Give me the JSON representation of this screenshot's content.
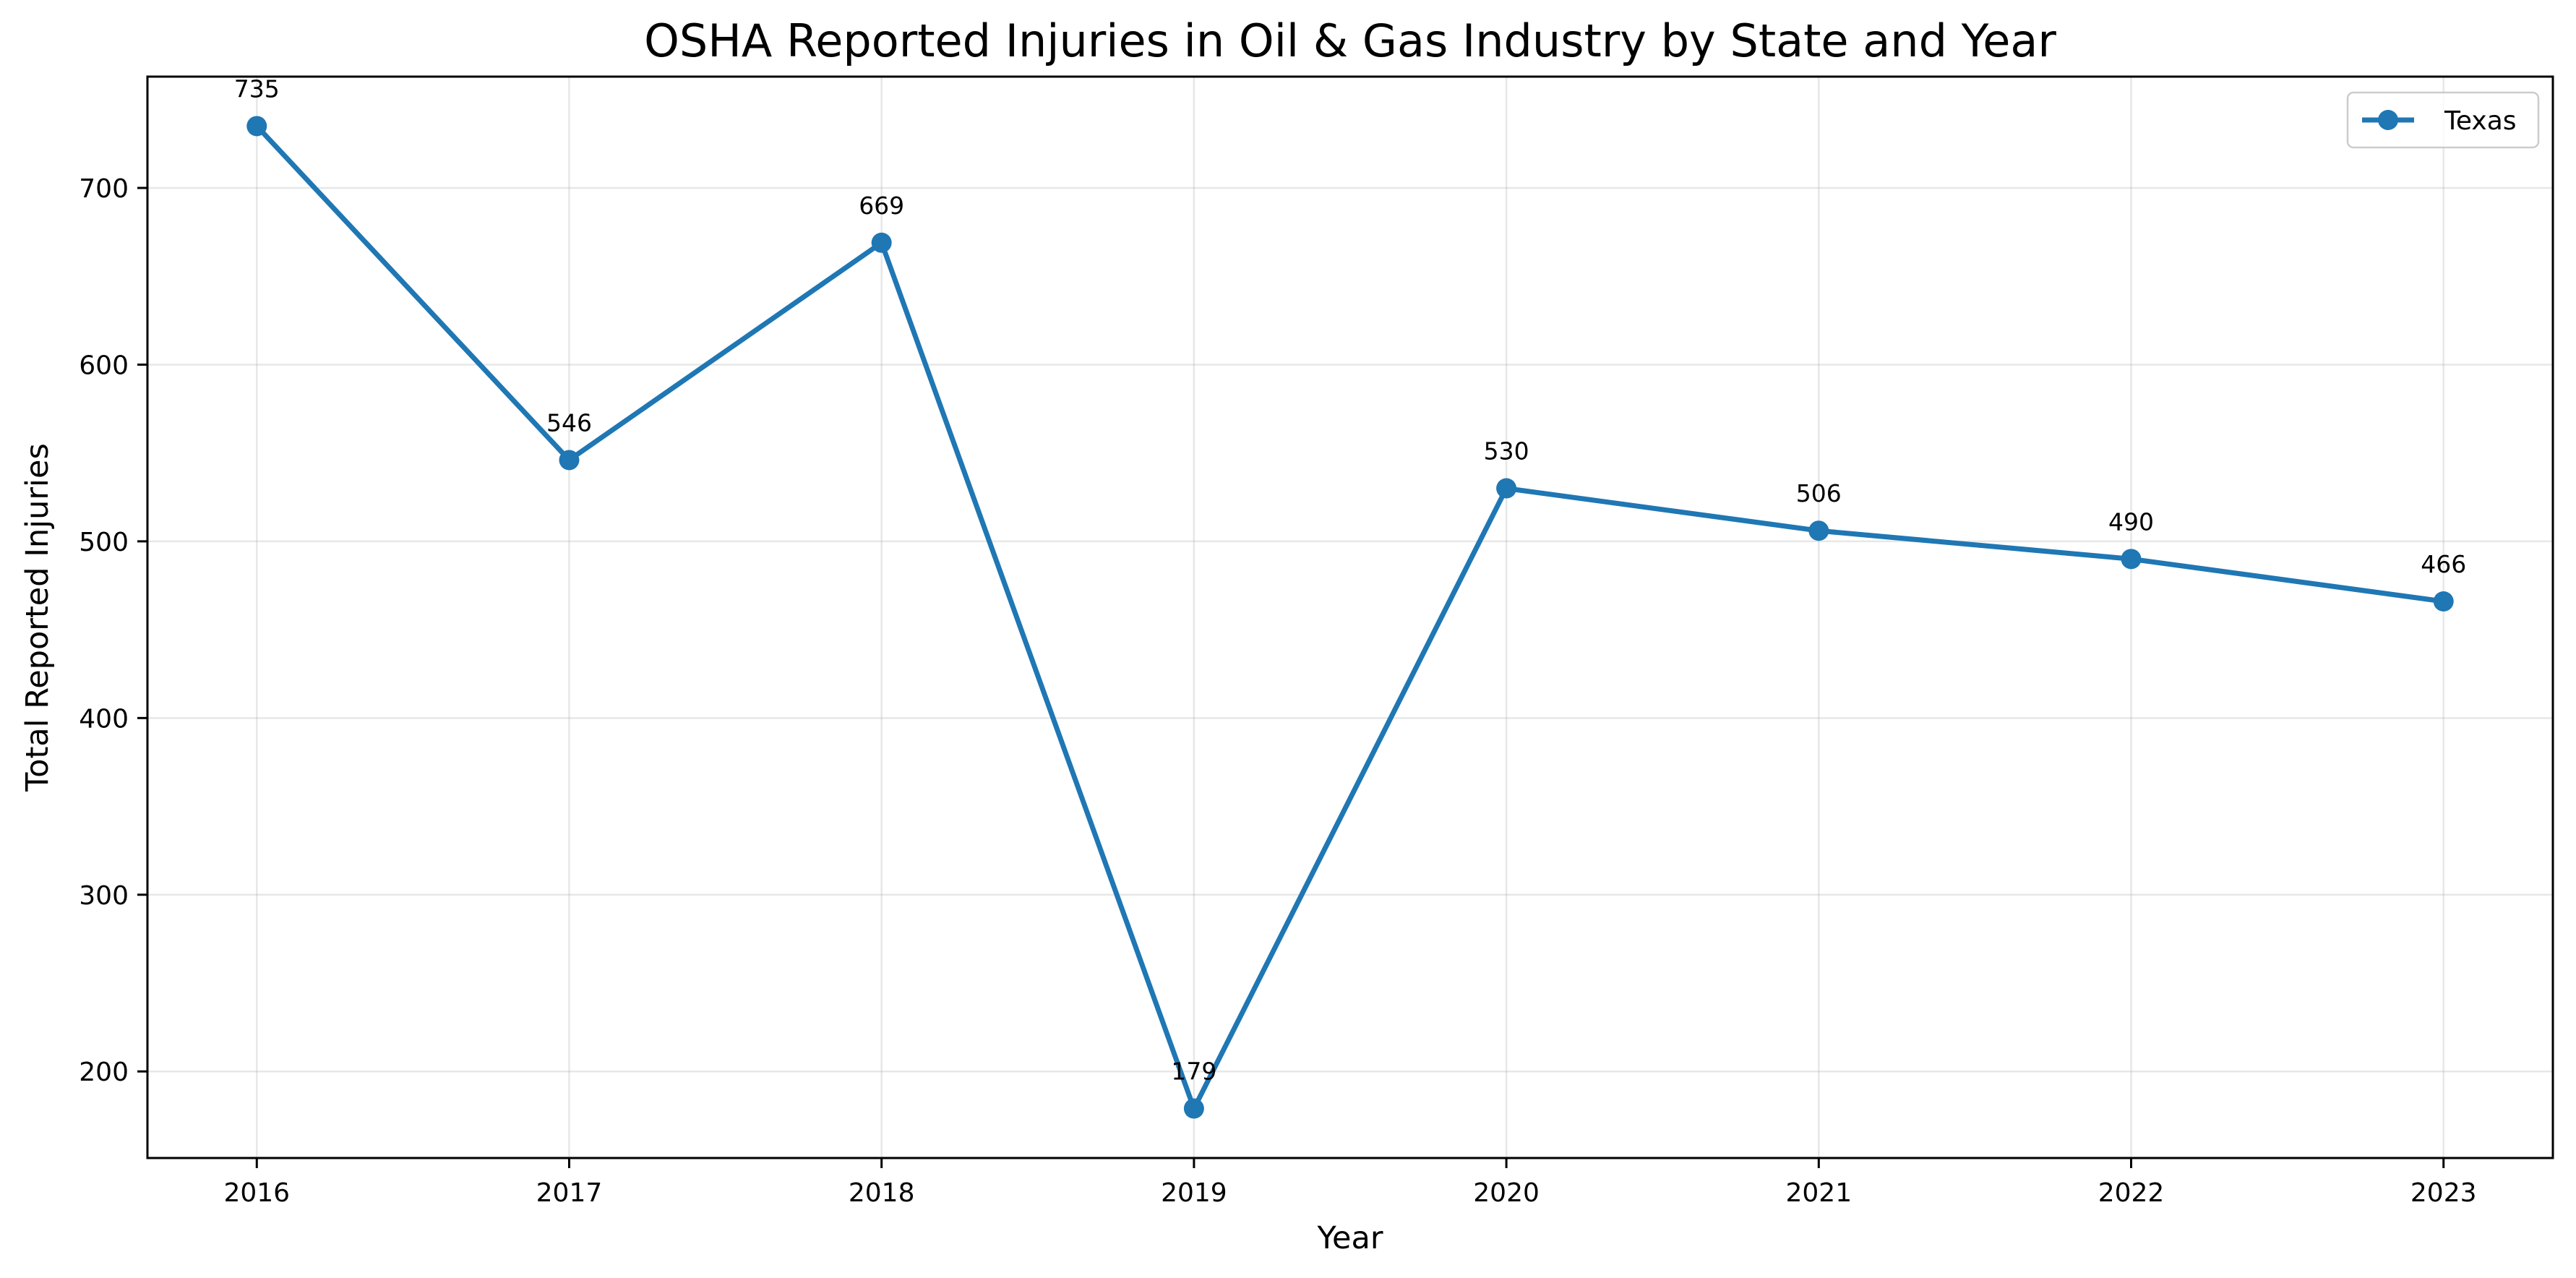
{
  "chart_data": {
    "type": "line",
    "title": "OSHA Reported Injuries in Oil & Gas Industry by State and Year",
    "xlabel": "Year",
    "ylabel": "Total Reported Injuries",
    "x": [
      "2016",
      "2017",
      "2018",
      "2019",
      "2020",
      "2021",
      "2022",
      "2023"
    ],
    "series": [
      {
        "name": "Texas",
        "color": "#1f77b4",
        "values": [
          735,
          546,
          669,
          179,
          530,
          506,
          490,
          466
        ],
        "labels": [
          "735",
          "546",
          "669",
          "179",
          "530",
          "506",
          "490",
          "466"
        ]
      }
    ],
    "yticks": [
      200,
      300,
      400,
      500,
      600,
      700
    ],
    "ytick_labels": [
      "200",
      "300",
      "400",
      "500",
      "600",
      "700"
    ],
    "ylim": [
      151,
      763
    ],
    "xlim": [
      2015.65,
      2023.35
    ],
    "grid": true,
    "legend": "top-right"
  }
}
